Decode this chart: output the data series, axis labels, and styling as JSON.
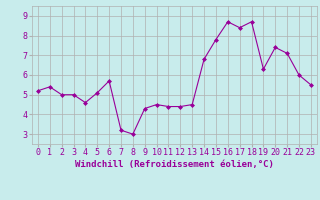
{
  "x": [
    0,
    1,
    2,
    3,
    4,
    5,
    6,
    7,
    8,
    9,
    10,
    11,
    12,
    13,
    14,
    15,
    16,
    17,
    18,
    19,
    20,
    21,
    22,
    23
  ],
  "y": [
    5.2,
    5.4,
    5.0,
    5.0,
    4.6,
    5.1,
    5.7,
    3.2,
    3.0,
    4.3,
    4.5,
    4.4,
    4.4,
    4.5,
    6.8,
    7.8,
    8.7,
    8.4,
    8.7,
    6.3,
    7.4,
    7.1,
    6.0,
    5.5
  ],
  "xlim": [
    -0.5,
    23.5
  ],
  "ylim": [
    2.5,
    9.5
  ],
  "yticks": [
    3,
    4,
    5,
    6,
    7,
    8,
    9
  ],
  "xticks": [
    0,
    1,
    2,
    3,
    4,
    5,
    6,
    7,
    8,
    9,
    10,
    11,
    12,
    13,
    14,
    15,
    16,
    17,
    18,
    19,
    20,
    21,
    22,
    23
  ],
  "xlabel": "Windchill (Refroidissement éolien,°C)",
  "line_color": "#990099",
  "marker": "D",
  "marker_size": 2.0,
  "bg_color": "#c8ecec",
  "grid_color": "#b0b0b0",
  "xlabel_fontsize": 6.5,
  "tick_fontsize": 6.0,
  "linewidth": 0.8
}
